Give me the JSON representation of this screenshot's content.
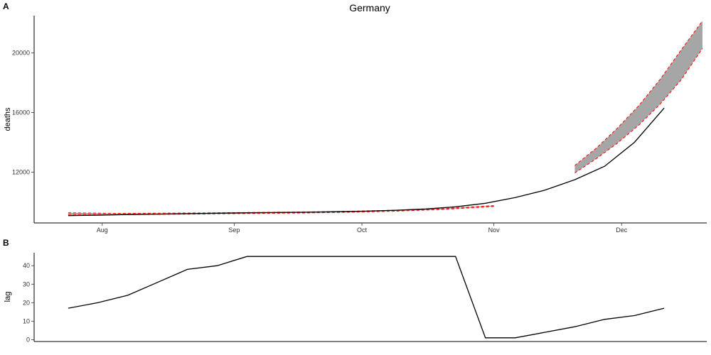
{
  "panels": {
    "a": {
      "tag": "A",
      "title": "Germany"
    },
    "b": {
      "tag": "B"
    }
  },
  "chart_data": [
    {
      "type": "line",
      "panel": "A",
      "title": "Germany",
      "xlabel": "",
      "ylabel": "deaths",
      "x_range": [
        "2020-07-16",
        "2020-12-21"
      ],
      "ylim": [
        8600,
        22500
      ],
      "x_ticks": [
        {
          "date": "2020-08-01",
          "label": "Aug"
        },
        {
          "date": "2020-09-01",
          "label": "Sep"
        },
        {
          "date": "2020-10-01",
          "label": "Oct"
        },
        {
          "date": "2020-11-01",
          "label": "Nov"
        },
        {
          "date": "2020-12-01",
          "label": "Dec"
        }
      ],
      "y_ticks": [
        12000,
        16000,
        20000
      ],
      "grid": false,
      "colors": {
        "observed": "#000000",
        "band_edge": "#ff1a1a",
        "ribbon": "#a6a6a6"
      },
      "observed": {
        "x": [
          "2020-07-24",
          "2020-07-31",
          "2020-08-07",
          "2020-08-14",
          "2020-08-21",
          "2020-08-28",
          "2020-09-04",
          "2020-09-11",
          "2020-09-18",
          "2020-09-25",
          "2020-10-02",
          "2020-10-09",
          "2020-10-16",
          "2020-10-23",
          "2020-10-30",
          "2020-11-06",
          "2020-11-13",
          "2020-11-20",
          "2020-11-27",
          "2020-12-04",
          "2020-12-11"
        ],
        "y": [
          9090,
          9120,
          9160,
          9190,
          9220,
          9250,
          9280,
          9300,
          9320,
          9350,
          9390,
          9450,
          9540,
          9680,
          9920,
          10300,
          10800,
          11500,
          12400,
          14000,
          16300
        ]
      },
      "forecasts": [
        {
          "x": [
            "2020-07-24",
            "2020-08-04",
            "2020-08-15",
            "2020-08-26",
            "2020-09-06",
            "2020-09-17",
            "2020-09-28",
            "2020-10-09",
            "2020-10-20",
            "2020-11-01"
          ],
          "lower": [
            9140,
            9150,
            9180,
            9210,
            9240,
            9270,
            9320,
            9390,
            9510,
            9700
          ],
          "upper": [
            9280,
            9240,
            9250,
            9270,
            9300,
            9330,
            9380,
            9450,
            9560,
            9760
          ]
        },
        {
          "x": [
            "2020-11-20",
            "2020-11-25",
            "2020-11-30",
            "2020-12-05",
            "2020-12-10",
            "2020-12-15",
            "2020-12-20"
          ],
          "lower": [
            11950,
            12900,
            13950,
            15150,
            16550,
            18200,
            20300
          ],
          "upper": [
            12450,
            13600,
            14950,
            16450,
            18200,
            20200,
            22150
          ]
        }
      ]
    },
    {
      "type": "line",
      "panel": "B",
      "title": "",
      "xlabel": "",
      "ylabel": "lag",
      "x_range": [
        "2020-07-16",
        "2020-12-21"
      ],
      "ylim": [
        -1,
        47
      ],
      "y_ticks": [
        0,
        10,
        20,
        30,
        40
      ],
      "grid": false,
      "x": [
        "2020-07-24",
        "2020-07-31",
        "2020-08-07",
        "2020-08-14",
        "2020-08-21",
        "2020-08-28",
        "2020-09-04",
        "2020-09-11",
        "2020-09-18",
        "2020-09-25",
        "2020-10-02",
        "2020-10-09",
        "2020-10-16",
        "2020-10-23",
        "2020-10-30",
        "2020-11-06",
        "2020-11-13",
        "2020-11-20",
        "2020-11-27",
        "2020-12-04",
        "2020-12-11"
      ],
      "y": [
        17,
        20,
        24,
        31,
        38,
        40,
        45,
        45,
        45,
        45,
        45,
        45,
        45,
        45,
        1,
        1,
        4,
        7,
        11,
        13,
        17
      ]
    }
  ]
}
